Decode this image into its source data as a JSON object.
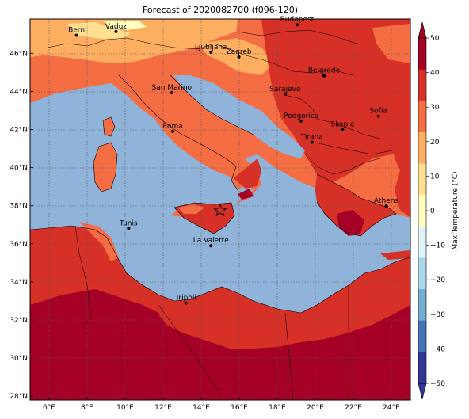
{
  "title": "Forecast of 2020082700 (f096-120)",
  "colorbar": {
    "label": "Max Temperature (°C)",
    "ticks": [
      "50",
      "40",
      "30",
      "20",
      "10",
      "0",
      "−10",
      "−20",
      "−30",
      "−40",
      "−50"
    ],
    "colors": [
      "#a50026",
      "#d73027",
      "#f46d43",
      "#fdae61",
      "#fee090",
      "#ffffbf",
      "#e0f3f8",
      "#abd9e9",
      "#74add1",
      "#4575b4",
      "#313695"
    ]
  },
  "axes": {
    "x_ticks": [
      "6°E",
      "8°E",
      "10°E",
      "12°E",
      "14°E",
      "16°E",
      "18°E",
      "20°E",
      "22°E",
      "24°E"
    ],
    "y_ticks": [
      "46°N",
      "44°N",
      "42°N",
      "40°N",
      "38°N",
      "36°N",
      "34°N",
      "32°N",
      "30°N",
      "28°N"
    ]
  },
  "cities": [
    {
      "name": "Bern",
      "lon": 7.44,
      "lat": 46.95
    },
    {
      "name": "Vaduz",
      "lon": 9.52,
      "lat": 47.14
    },
    {
      "name": "Budapest",
      "lon": 19.04,
      "lat": 47.5
    },
    {
      "name": "Ljubljana",
      "lon": 14.51,
      "lat": 46.06
    },
    {
      "name": "Zagreb",
      "lon": 15.98,
      "lat": 45.81
    },
    {
      "name": "Belgrade",
      "lon": 20.46,
      "lat": 44.82
    },
    {
      "name": "San Marino",
      "lon": 12.45,
      "lat": 43.94
    },
    {
      "name": "Sarajevo",
      "lon": 18.41,
      "lat": 43.86
    },
    {
      "name": "Sofia",
      "lon": 23.32,
      "lat": 42.7
    },
    {
      "name": "Roma",
      "lon": 12.5,
      "lat": 41.9
    },
    {
      "name": "Podgorica",
      "lon": 19.26,
      "lat": 42.44
    },
    {
      "name": "Skopje",
      "lon": 21.43,
      "lat": 42.0
    },
    {
      "name": "Tirana",
      "lon": 19.82,
      "lat": 41.33
    },
    {
      "name": "Athens",
      "lon": 23.73,
      "lat": 37.98
    },
    {
      "name": "Tunis",
      "lon": 10.18,
      "lat": 36.81
    },
    {
      "name": "La Valette",
      "lon": 14.51,
      "lat": 35.9
    },
    {
      "name": "Tripoli",
      "lon": 13.19,
      "lat": 32.89
    }
  ],
  "marker": {
    "symbol": "star",
    "lon": 15.0,
    "lat": 37.75
  }
}
